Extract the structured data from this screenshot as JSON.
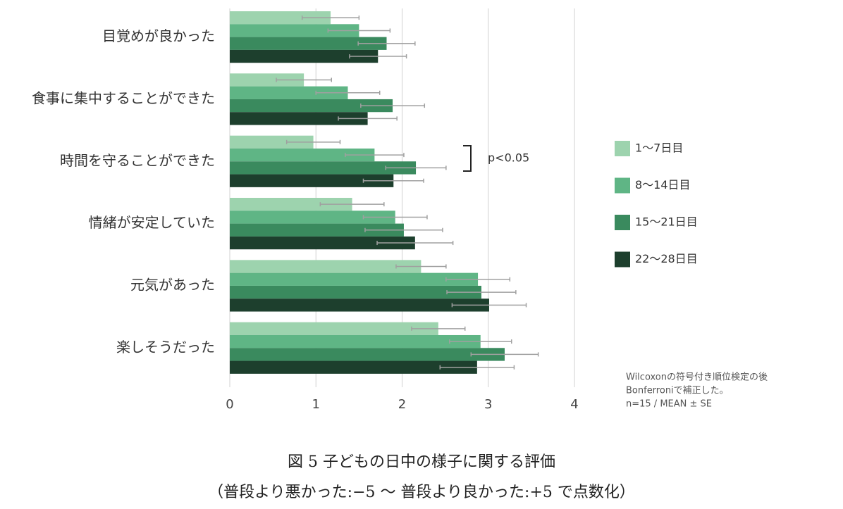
{
  "chart_data": {
    "type": "bar",
    "orientation": "horizontal",
    "categories": [
      "目覚めが良かった",
      "食事に集中することができた",
      "時間を守ることができた",
      "情緒が安定していた",
      "元気があった",
      "楽しそうだった"
    ],
    "series": [
      {
        "name": "1～7日目",
        "color": "#9dd3ae",
        "values": [
          1.17,
          0.86,
          0.97,
          1.42,
          2.22,
          2.42
        ],
        "errors": [
          0.33,
          0.32,
          0.31,
          0.37,
          0.29,
          0.31
        ]
      },
      {
        "name": "8～14日目",
        "color": "#5fb585",
        "values": [
          1.5,
          1.37,
          1.68,
          1.92,
          2.88,
          2.91
        ],
        "errors": [
          0.36,
          0.37,
          0.34,
          0.37,
          0.37,
          0.36
        ]
      },
      {
        "name": "15～21日目",
        "color": "#3a8a5e",
        "values": [
          1.82,
          1.89,
          2.16,
          2.02,
          2.92,
          3.19
        ],
        "errors": [
          0.33,
          0.37,
          0.35,
          0.45,
          0.4,
          0.39
        ]
      },
      {
        "name": "22～28日目",
        "color": "#1d3f2d",
        "values": [
          1.72,
          1.6,
          1.9,
          2.15,
          3.01,
          2.87
        ],
        "errors": [
          0.33,
          0.34,
          0.35,
          0.44,
          0.43,
          0.43
        ]
      }
    ],
    "xlim": [
      0,
      4
    ],
    "xticks": [
      0,
      1,
      2,
      3,
      4
    ],
    "grid": true,
    "legend": "right",
    "annotation": "p<0.05",
    "note": [
      "Wilcoxonの符号付き順位検定の後",
      "Bonferroniで補正した。",
      "n=15 / MEAN ± SE"
    ],
    "caption": [
      "図 5  子どもの日中の様子に関する評価",
      "（普段より悪かった:−5  ～  普段より良かった:+5  で点数化）"
    ]
  }
}
